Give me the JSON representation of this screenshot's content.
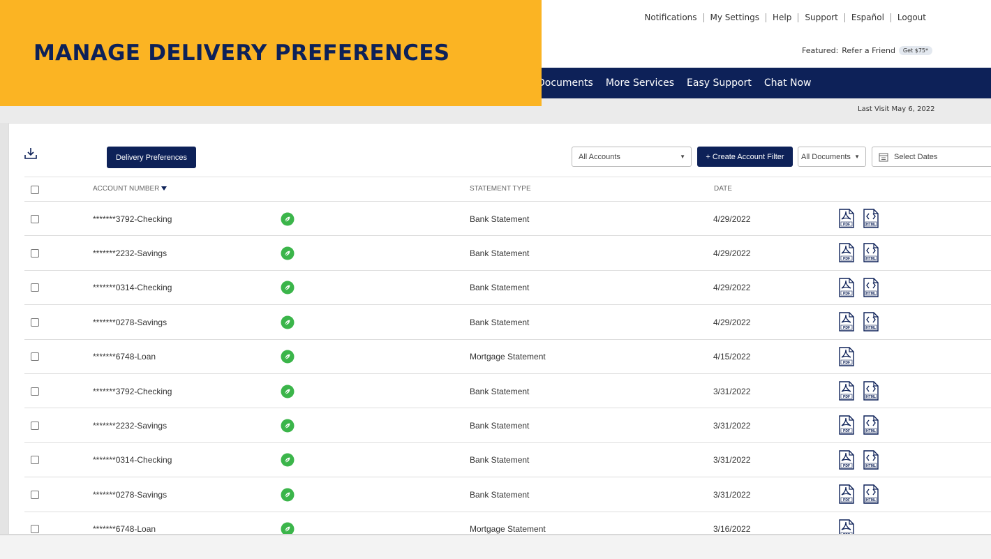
{
  "banner": {
    "title": "MANAGE DELIVERY PREFERENCES"
  },
  "top_links": [
    "Notifications",
    "My Settings",
    "Help",
    "Support",
    "Español",
    "Logout"
  ],
  "featured": {
    "label": "Featured:",
    "link": "Refer a Friend",
    "badge": "Get $75*"
  },
  "nav": [
    "Documents",
    "More Services",
    "Easy Support",
    "Chat Now"
  ],
  "last_visit": "Last Visit May 6, 2022",
  "toolbar": {
    "delivery_button": "Delivery Preferences",
    "account_select": "All Accounts",
    "create_filter": "+ Create Account Filter",
    "documents_select": "All Documents",
    "date_select": "Select Dates"
  },
  "icons": {
    "pdf": "PDF",
    "html": "HTML"
  },
  "table": {
    "headers": [
      "ACCOUNT NUMBER",
      "STATEMENT TYPE",
      "DATE"
    ],
    "rows": [
      {
        "account": "*******3792-Checking",
        "type": "Bank Statement",
        "date": "4/29/2022",
        "html": true
      },
      {
        "account": "*******2232-Savings",
        "type": "Bank Statement",
        "date": "4/29/2022",
        "html": true
      },
      {
        "account": "*******0314-Checking",
        "type": "Bank Statement",
        "date": "4/29/2022",
        "html": true
      },
      {
        "account": "*******0278-Savings",
        "type": "Bank Statement",
        "date": "4/29/2022",
        "html": true
      },
      {
        "account": "*******6748-Loan",
        "type": "Mortgage Statement",
        "date": "4/15/2022",
        "html": false
      },
      {
        "account": "*******3792-Checking",
        "type": "Bank Statement",
        "date": "3/31/2022",
        "html": true
      },
      {
        "account": "*******2232-Savings",
        "type": "Bank Statement",
        "date": "3/31/2022",
        "html": true
      },
      {
        "account": "*******0314-Checking",
        "type": "Bank Statement",
        "date": "3/31/2022",
        "html": true
      },
      {
        "account": "*******0278-Savings",
        "type": "Bank Statement",
        "date": "3/31/2022",
        "html": true
      },
      {
        "account": "*******6748-Loan",
        "type": "Mortgage Statement",
        "date": "3/16/2022",
        "html": false
      }
    ]
  }
}
